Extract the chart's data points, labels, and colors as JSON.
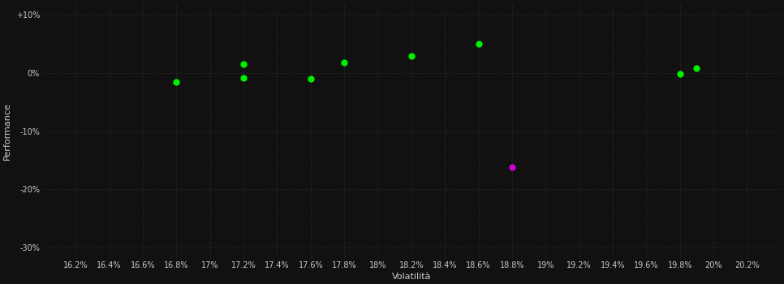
{
  "background_color": "#111111",
  "grid_color": "#333333",
  "text_color": "#cccccc",
  "xlabel": "Volatilità",
  "ylabel": "Performance",
  "xlim": [
    0.16,
    0.204
  ],
  "ylim": [
    -0.32,
    0.12
  ],
  "xticks": [
    0.162,
    0.164,
    0.166,
    0.168,
    0.17,
    0.172,
    0.174,
    0.176,
    0.178,
    0.18,
    0.182,
    0.184,
    0.186,
    0.188,
    0.19,
    0.192,
    0.194,
    0.196,
    0.198,
    0.2,
    0.202
  ],
  "xtick_labels": [
    "16.2%",
    "16.4%",
    "16.6%",
    "16.8%",
    "17%",
    "17.2%",
    "17.4%",
    "17.6%",
    "17.8%",
    "18%",
    "18.2%",
    "18.4%",
    "18.6%",
    "18.8%",
    "19%",
    "19.2%",
    "19.4%",
    "19.6%",
    "19.8%",
    "20%",
    "20.2%"
  ],
  "ytick_values": [
    0.1,
    0.0,
    -0.1,
    -0.2,
    -0.3
  ],
  "ytick_labels": [
    "+10%",
    "0%",
    "-10%",
    "-20%",
    "-30%"
  ],
  "green_points": [
    [
      0.168,
      -0.015
    ],
    [
      0.172,
      -0.008
    ],
    [
      0.172,
      0.015
    ],
    [
      0.176,
      -0.01
    ],
    [
      0.178,
      0.018
    ],
    [
      0.182,
      0.03
    ],
    [
      0.186,
      0.05
    ],
    [
      0.198,
      -0.002
    ],
    [
      0.199,
      0.008
    ]
  ],
  "magenta_points": [
    [
      0.188,
      -0.162
    ]
  ],
  "green_color": "#00ee00",
  "magenta_color": "#cc00cc",
  "marker_size": 6
}
